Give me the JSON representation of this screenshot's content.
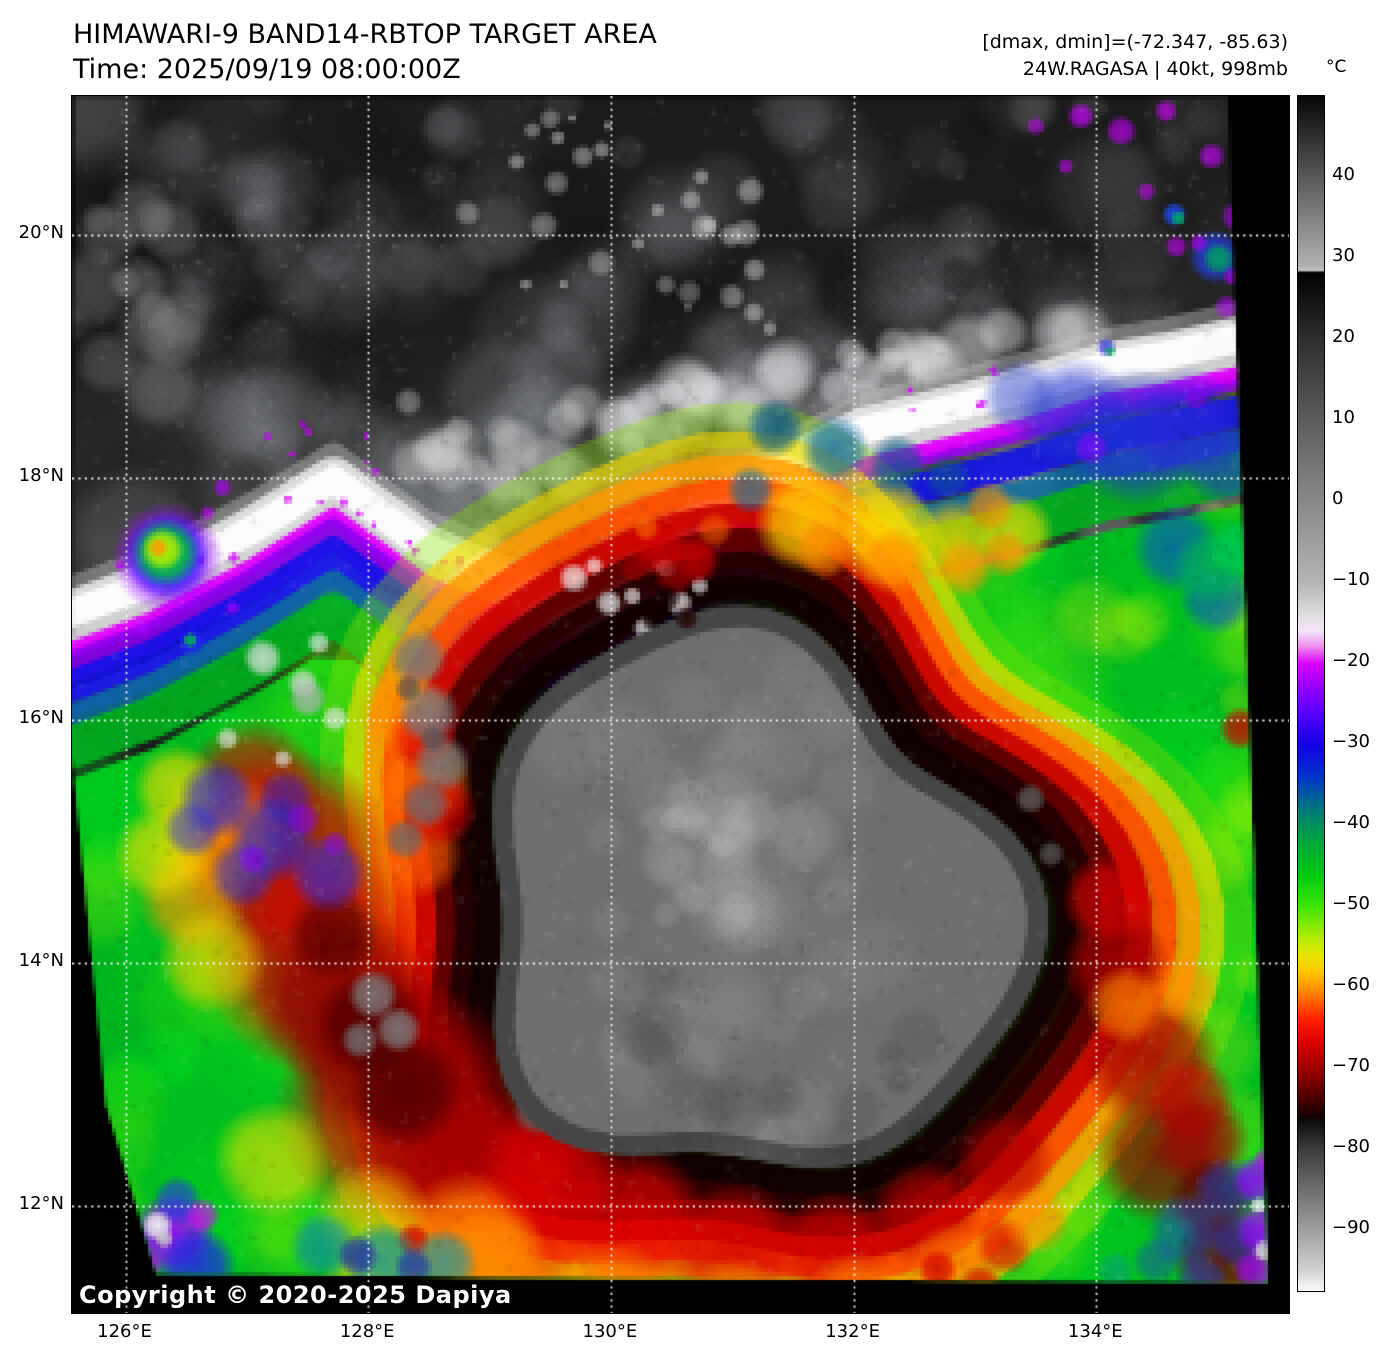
{
  "header": {
    "title": "HIMAWARI-9 BAND14-RBTOP TARGET AREA",
    "time": "Time: 2025/09/19 08:00:00Z",
    "stats_line": "[dmax, dmin]=(-72.347, -85.63)",
    "storm_line": "24W.RAGASA | 40kt, 998mb"
  },
  "map": {
    "copyright": "Copyright © 2020-2025 Dapiya",
    "lat_ticks": [
      {
        "label": "20°N",
        "value": 20
      },
      {
        "label": "18°N",
        "value": 18
      },
      {
        "label": "16°N",
        "value": 16
      },
      {
        "label": "14°N",
        "value": 14
      },
      {
        "label": "12°N",
        "value": 12
      }
    ],
    "lon_ticks": [
      {
        "label": "126°E",
        "value": 126
      },
      {
        "label": "128°E",
        "value": 128
      },
      {
        "label": "130°E",
        "value": 130
      },
      {
        "label": "132°E",
        "value": 132
      },
      {
        "label": "134°E",
        "value": 134
      }
    ]
  },
  "colorbar": {
    "unit": "°C",
    "domain": [
      50,
      -97.5
    ],
    "ticks": [
      {
        "label": "40",
        "value": 40
      },
      {
        "label": "30",
        "value": 30
      },
      {
        "label": "20",
        "value": 20
      },
      {
        "label": "10",
        "value": 10
      },
      {
        "label": "0",
        "value": 0
      },
      {
        "label": "−10",
        "value": -10
      },
      {
        "label": "−20",
        "value": -20
      },
      {
        "label": "−30",
        "value": -30
      },
      {
        "label": "−40",
        "value": -40
      },
      {
        "label": "−50",
        "value": -50
      },
      {
        "label": "−60",
        "value": -60
      },
      {
        "label": "−70",
        "value": -70
      },
      {
        "label": "−80",
        "value": -80
      },
      {
        "label": "−90",
        "value": -90
      }
    ],
    "stops": [
      {
        "t": 50,
        "c": "#060606"
      },
      {
        "t": 29,
        "c": "#b2b2b2"
      },
      {
        "t": 28.5,
        "c": "#c4c4c4"
      },
      {
        "t": 28.2,
        "c": "#000000"
      },
      {
        "t": 20,
        "c": "#2e2e2e"
      },
      {
        "t": 10,
        "c": "#5c5c5c"
      },
      {
        "t": 0,
        "c": "#888888"
      },
      {
        "t": -10,
        "c": "#b4b4b4"
      },
      {
        "t": -14,
        "c": "#dedede"
      },
      {
        "t": -16,
        "c": "#f4e6f8"
      },
      {
        "t": -18,
        "c": "#ee8cee"
      },
      {
        "t": -20,
        "c": "#dc00ff"
      },
      {
        "t": -23,
        "c": "#9600ff"
      },
      {
        "t": -26,
        "c": "#5a00ff"
      },
      {
        "t": -30,
        "c": "#1400e6"
      },
      {
        "t": -34,
        "c": "#0032cd"
      },
      {
        "t": -38,
        "c": "#00787d"
      },
      {
        "t": -42,
        "c": "#00a53c"
      },
      {
        "t": -46,
        "c": "#00c814"
      },
      {
        "t": -50,
        "c": "#3ce600"
      },
      {
        "t": -54,
        "c": "#b4ec00"
      },
      {
        "t": -56,
        "c": "#e6e600"
      },
      {
        "t": -58,
        "c": "#ffc800"
      },
      {
        "t": -60,
        "c": "#ff9600"
      },
      {
        "t": -62,
        "c": "#ff5a00"
      },
      {
        "t": -64,
        "c": "#ff1e00"
      },
      {
        "t": -67,
        "c": "#d90000"
      },
      {
        "t": -70,
        "c": "#a00000"
      },
      {
        "t": -73,
        "c": "#5a0000"
      },
      {
        "t": -76,
        "c": "#140000"
      },
      {
        "t": -76.4,
        "c": "#0a0a0a"
      },
      {
        "t": -80,
        "c": "#3c3c3c"
      },
      {
        "t": -85,
        "c": "#6e6e6e"
      },
      {
        "t": -90,
        "c": "#a0a0a0"
      },
      {
        "t": -95,
        "c": "#d2d2d2"
      },
      {
        "t": -97.5,
        "c": "#fbfbfb"
      }
    ]
  }
}
